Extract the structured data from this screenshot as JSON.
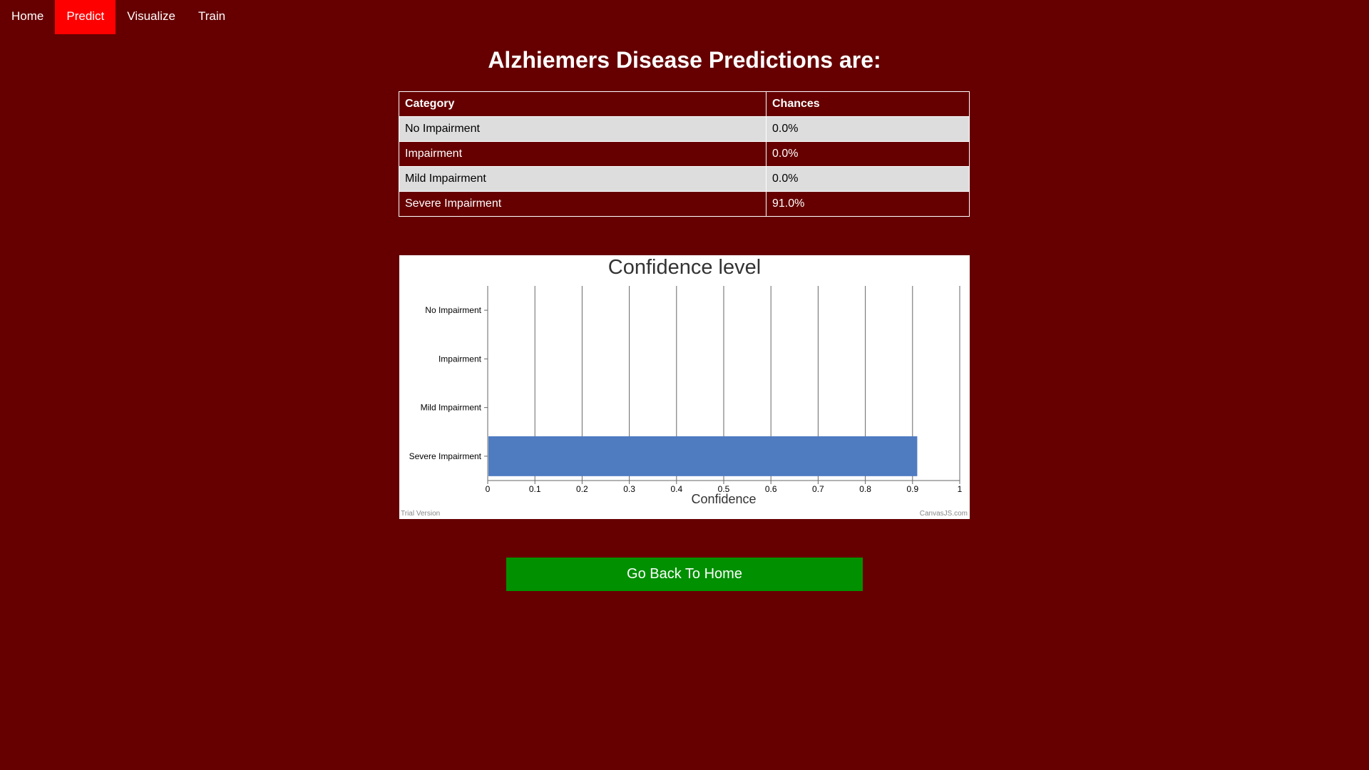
{
  "nav": {
    "items": [
      {
        "label": "Home"
      },
      {
        "label": "Predict"
      },
      {
        "label": "Visualize"
      },
      {
        "label": "Train"
      }
    ]
  },
  "page_title": "Alzhiemers Disease Predictions are:",
  "table": {
    "headers": [
      "Category",
      "Chances"
    ],
    "rows": [
      {
        "category": "No Impairment",
        "chance": "0.0%"
      },
      {
        "category": "Impairment",
        "chance": "0.0%"
      },
      {
        "category": "Mild Impairment",
        "chance": "0.0%"
      },
      {
        "category": "Severe Impairment",
        "chance": "91.0%"
      }
    ]
  },
  "chart_data": {
    "type": "bar",
    "orientation": "horizontal",
    "title": "Confidence level",
    "xlabel": "Confidence",
    "ylabel": "",
    "categories": [
      "No Impairment",
      "Impairment",
      "Mild Impairment",
      "Severe Impairment"
    ],
    "values": [
      0.0,
      0.0,
      0.0,
      0.91
    ],
    "xlim": [
      0,
      1
    ],
    "ticks": [
      "0",
      "0.1",
      "0.2",
      "0.3",
      "0.4",
      "0.5",
      "0.6",
      "0.7",
      "0.8",
      "0.9",
      "1"
    ],
    "grid": true,
    "bar_color": "#4f7bc1",
    "footer_left": "Trial Version",
    "footer_right": "CanvasJS.com"
  },
  "back_button_label": "Go Back To Home",
  "colors": {
    "background": "#660000",
    "nav_active": "#ff0000",
    "button": "#009000"
  }
}
